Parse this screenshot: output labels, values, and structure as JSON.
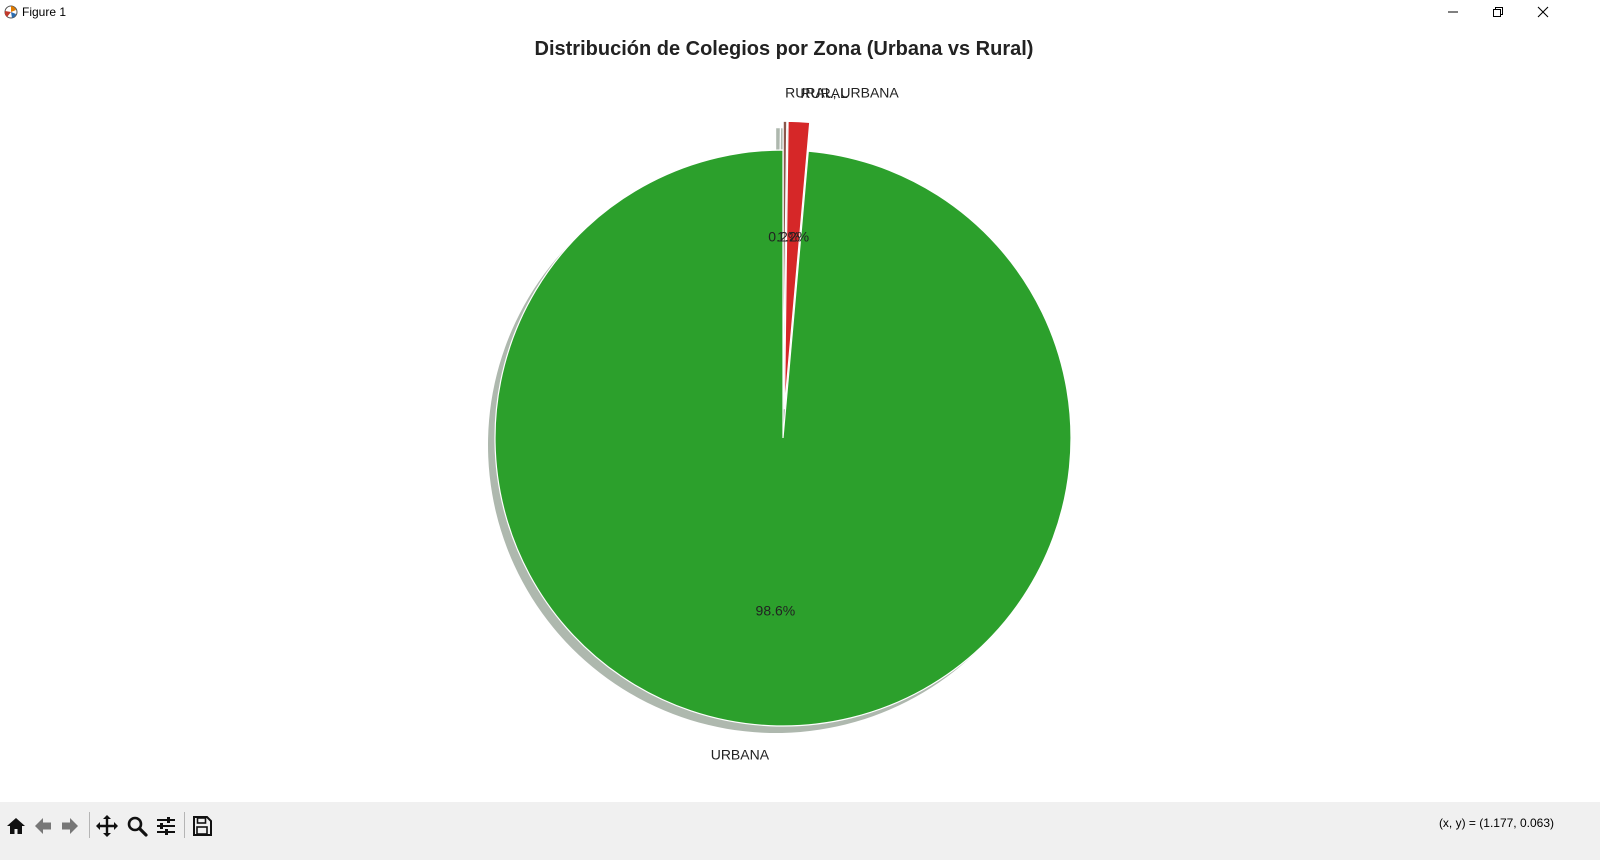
{
  "window": {
    "title": "Figure 1",
    "controls": [
      "minimize",
      "restore",
      "close"
    ]
  },
  "chart_data": {
    "type": "pie",
    "title": "Distribución de Colegios por Zona (Urbana vs Rural)",
    "categories": [
      "URBANA",
      "RURAL",
      "RURAL, URBANA"
    ],
    "values": [
      98.6,
      1.2,
      0.2
    ],
    "pct_labels": [
      "98.6%",
      "1.2%",
      "0.2%"
    ],
    "colors": [
      "#2ca02c",
      "#d62728",
      "#8c564b"
    ],
    "explode": [
      0,
      0.1,
      0.1
    ],
    "shadow": true,
    "start_angle": 90,
    "direction": "counterclockwise",
    "wedge_edge_color": "#ffffff"
  },
  "toolbar": {
    "tools": [
      "home-icon",
      "back-icon",
      "forward-icon",
      "pan-icon",
      "zoom-icon",
      "configure-subplots-icon",
      "save-icon"
    ],
    "coordinates": "(x, y) = (1.177, 0.063)"
  }
}
